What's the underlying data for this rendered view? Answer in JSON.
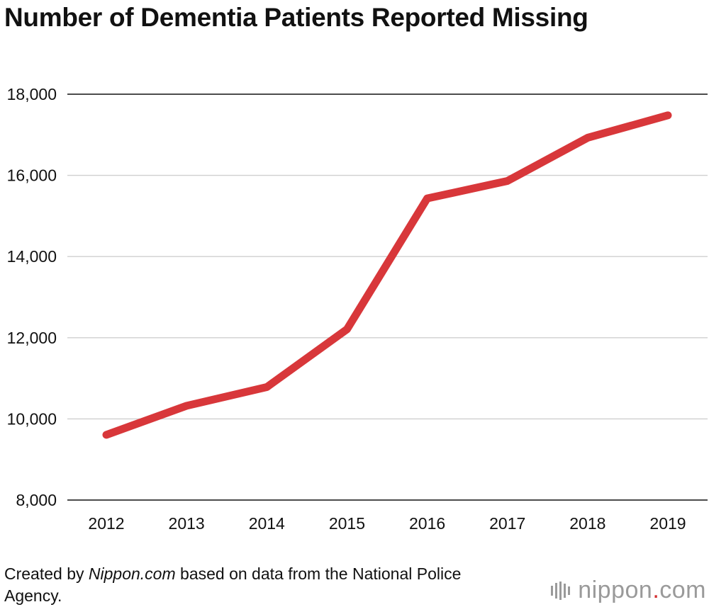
{
  "chart_data": {
    "type": "line",
    "title": "Number of Dementia Patients Reported Missing",
    "categories": [
      "2012",
      "2013",
      "2014",
      "2015",
      "2016",
      "2017",
      "2018",
      "2019"
    ],
    "series": [
      {
        "values": [
          9607,
          10322,
          10783,
          12208,
          15432,
          15863,
          16927,
          17479
        ],
        "color": "#d8373a"
      }
    ],
    "ylim": [
      8000,
      18000
    ],
    "yticks": [
      8000,
      10000,
      12000,
      14000,
      16000,
      18000
    ],
    "ytick_labels": [
      "8,000",
      "10,000",
      "12,000",
      "14,000",
      "16,000",
      "18,000"
    ],
    "grid": true,
    "xlabel": "",
    "ylabel": ""
  },
  "source": {
    "prefix": "Created by ",
    "site": "Nippon.com",
    "suffix": " based on data from the National Police Agency."
  },
  "logo": {
    "name": "nippon",
    "dot": ".",
    "tld": "com",
    "icon": "sound-bars-icon"
  }
}
